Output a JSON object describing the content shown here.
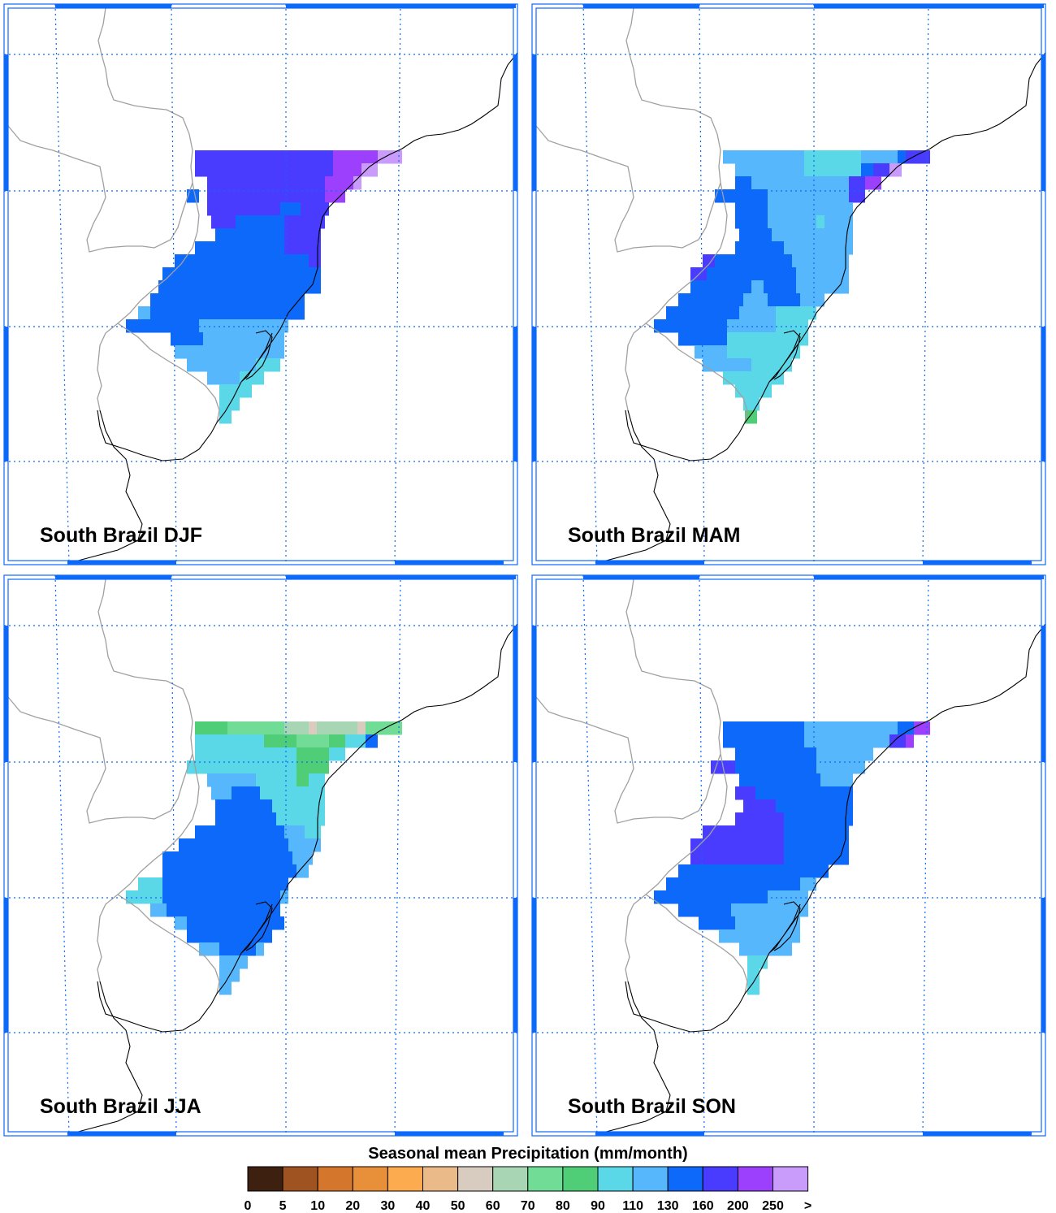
{
  "panels": [
    {
      "id": "djf",
      "title": "South Brazil DJF"
    },
    {
      "id": "mam",
      "title": "South Brazil MAM"
    },
    {
      "id": "jja",
      "title": "South Brazil JJA"
    },
    {
      "id": "son",
      "title": "South Brazil SON"
    }
  ],
  "legend": {
    "title": "Seasonal mean Precipitation (mm/month)",
    "labels": [
      "0",
      "5",
      "10",
      "20",
      "30",
      "40",
      "50",
      "60",
      "70",
      "80",
      "90",
      "110",
      "130",
      "160",
      "200",
      "250",
      ">"
    ],
    "colors": [
      "#3d2010",
      "#9e5320",
      "#d4762c",
      "#e88f3a",
      "#fdab4f",
      "#ebba89",
      "#d8cbbf",
      "#a8d6b5",
      "#70dc96",
      "#4fcd77",
      "#5ad8e8",
      "#56b7fc",
      "#0d69fa",
      "#4a3cff",
      "#9c40fd",
      "#c99bfb"
    ]
  },
  "colors": {
    "frame": "#0d69fa",
    "gridline": "#0d69fa",
    "coastline": "#000000",
    "border": "#a0a0a0"
  }
}
